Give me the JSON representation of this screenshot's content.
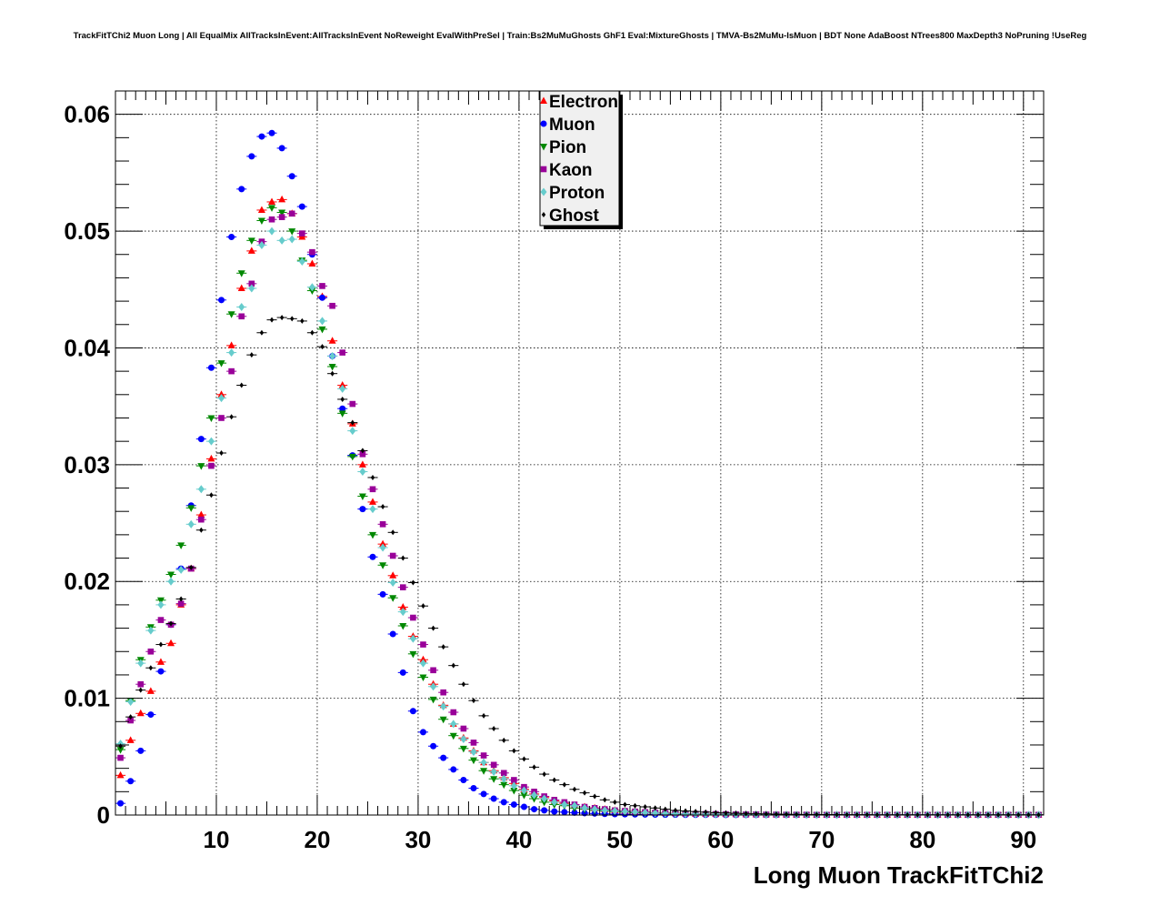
{
  "chart_data": {
    "type": "scatter",
    "title": "TrackFitTChi2 Muon Long | All EqualMix AllTracksInEvent:AllTracksInEvent NoReweight EvalWithPreSel | Train:Bs2MuMuGhosts GhF1 Eval:MixtureGhosts | TMVA-Bs2MuMu-IsMuon | BDT None AdaBoost NTrees800 MaxDepth3 NoPruning !UseReg",
    "xlabel": "Long Muon TrackFitTChi2",
    "ylabel": "",
    "xlim": [
      0,
      92
    ],
    "ylim": [
      0,
      0.062
    ],
    "x_ticks": [
      10,
      20,
      30,
      40,
      50,
      60,
      70,
      80,
      90
    ],
    "y_ticks": [
      0,
      0.01,
      0.02,
      0.03,
      0.04,
      0.05,
      0.06
    ],
    "x_tick_labels": [
      "10",
      "20",
      "30",
      "40",
      "50",
      "60",
      "70",
      "80",
      "90"
    ],
    "y_tick_labels": [
      "0",
      "0.01",
      "0.02",
      "0.03",
      "0.04",
      "0.05",
      "0.06"
    ],
    "grid": true,
    "legend_position": "top-center",
    "x": [
      0.5,
      1.5,
      2.5,
      3.5,
      4.5,
      5.5,
      6.5,
      7.5,
      8.5,
      9.5,
      10.5,
      11.5,
      12.5,
      13.5,
      14.5,
      15.5,
      16.5,
      17.5,
      18.5,
      19.5,
      20.5,
      21.5,
      22.5,
      23.5,
      24.5,
      25.5,
      26.5,
      27.5,
      28.5,
      29.5,
      30.5,
      31.5,
      32.5,
      33.5,
      34.5,
      35.5,
      36.5,
      37.5,
      38.5,
      39.5,
      40.5,
      41.5,
      42.5,
      43.5,
      44.5,
      45.5,
      46.5,
      47.5,
      48.5,
      49.5,
      50.5,
      51.5,
      52.5,
      53.5,
      54.5,
      55.5,
      56.5,
      57.5,
      58.5,
      59.5,
      60.5,
      61.5,
      62.5,
      63.5,
      64.5,
      65.5,
      66.5,
      67.5,
      68.5,
      69.5,
      70.5,
      71.5,
      72.5,
      73.5,
      74.5,
      75.5,
      76.5,
      77.5,
      78.5,
      79.5,
      80.5,
      81.5,
      82.5,
      83.5,
      84.5,
      85.5,
      86.5,
      87.5,
      88.5,
      89.5,
      90.5,
      91.5
    ],
    "series": [
      {
        "name": "Electron",
        "color": "#ff0000",
        "marker": "triangle-up",
        "values": [
          0.0034,
          0.0064,
          0.0087,
          0.0106,
          0.0131,
          0.0147,
          0.018,
          0.0211,
          0.0257,
          0.0305,
          0.036,
          0.0402,
          0.0451,
          0.0483,
          0.0518,
          0.0525,
          0.0527,
          0.0515,
          0.0495,
          0.0472,
          0.0444,
          0.0406,
          0.0368,
          0.0335,
          0.03,
          0.0268,
          0.0232,
          0.0205,
          0.0178,
          0.0153,
          0.0133,
          0.0112,
          0.0094,
          0.0078,
          0.0066,
          0.0055,
          0.0045,
          0.0038,
          0.0032,
          0.0027,
          0.0022,
          0.0018,
          0.0015,
          0.0012,
          0.001,
          0.0008,
          0.0007,
          0.0006,
          0.0005,
          0.0004,
          0.00035,
          0.0003,
          0.00025,
          0.0002,
          0.00018,
          0.00015,
          0.00013,
          0.0001,
          0.0001,
          9e-05,
          8e-05,
          7e-05,
          6e-05,
          5e-05,
          5e-05,
          4e-05,
          4e-05,
          3e-05,
          3e-05,
          3e-05,
          2e-05,
          2e-05,
          2e-05,
          2e-05,
          2e-05,
          1e-05,
          1e-05,
          1e-05,
          1e-05,
          1e-05,
          1e-05,
          1e-05,
          1e-05,
          1e-05,
          1e-05,
          1e-05,
          1e-05,
          1e-05,
          1e-05,
          1e-05,
          1e-05,
          1e-05
        ]
      },
      {
        "name": "Muon",
        "color": "#0000ff",
        "marker": "circle",
        "values": [
          0.001,
          0.0029,
          0.0055,
          0.0086,
          0.0123,
          0.0163,
          0.0211,
          0.0265,
          0.0322,
          0.0383,
          0.0441,
          0.0495,
          0.0536,
          0.0564,
          0.0581,
          0.0584,
          0.0571,
          0.0547,
          0.0521,
          0.048,
          0.0443,
          0.0393,
          0.0348,
          0.0308,
          0.0262,
          0.0221,
          0.0189,
          0.0155,
          0.0122,
          0.0089,
          0.0071,
          0.0059,
          0.0049,
          0.0039,
          0.003,
          0.0023,
          0.0018,
          0.0014,
          0.0011,
          0.0009,
          0.0007,
          0.0005,
          0.0004,
          0.0003,
          0.00025,
          0.0002,
          0.00016,
          0.00013,
          0.0001,
          8e-05,
          7e-05,
          6e-05,
          5e-05,
          4e-05,
          3e-05,
          3e-05,
          2e-05,
          2e-05,
          2e-05,
          2e-05,
          1e-05,
          1e-05,
          1e-05,
          1e-05,
          1e-05,
          1e-05,
          1e-05,
          1e-05,
          1e-05,
          1e-05,
          1e-05,
          1e-05,
          1e-05,
          1e-05,
          1e-05,
          1e-05,
          1e-05,
          1e-05,
          1e-05,
          1e-05,
          1e-05,
          1e-05,
          1e-05,
          1e-05,
          1e-05,
          1e-05,
          1e-05,
          1e-05,
          1e-05,
          1e-05,
          1e-05,
          1e-05
        ]
      },
      {
        "name": "Pion",
        "color": "#008800",
        "marker": "triangle-down",
        "values": [
          0.0056,
          0.0098,
          0.0133,
          0.0161,
          0.0184,
          0.0206,
          0.0231,
          0.0263,
          0.0299,
          0.034,
          0.0387,
          0.0429,
          0.0464,
          0.0492,
          0.0509,
          0.052,
          0.0516,
          0.05,
          0.0475,
          0.0449,
          0.0416,
          0.0384,
          0.0344,
          0.0307,
          0.0273,
          0.024,
          0.0214,
          0.0186,
          0.0162,
          0.0138,
          0.0118,
          0.0099,
          0.0082,
          0.0068,
          0.0057,
          0.0047,
          0.0038,
          0.0031,
          0.0026,
          0.0021,
          0.0017,
          0.0014,
          0.0011,
          0.0009,
          0.0008,
          0.0006,
          0.0005,
          0.0004,
          0.00035,
          0.0003,
          0.00025,
          0.0002,
          0.00018,
          0.00015,
          0.00012,
          0.0001,
          0.0001,
          8e-05,
          7e-05,
          6e-05,
          5e-05,
          5e-05,
          4e-05,
          4e-05,
          3e-05,
          3e-05,
          3e-05,
          2e-05,
          2e-05,
          2e-05,
          2e-05,
          2e-05,
          2e-05,
          2e-05,
          2e-05,
          2e-05,
          2e-05,
          2e-05,
          2e-05,
          2e-05,
          2e-05,
          2e-05,
          2e-05,
          2e-05,
          2e-05,
          2e-05,
          2e-05,
          2e-05,
          2e-05,
          2e-05,
          2e-05,
          2e-05
        ]
      },
      {
        "name": "Kaon",
        "color": "#990099",
        "marker": "square",
        "values": [
          0.0049,
          0.0081,
          0.0112,
          0.014,
          0.0167,
          0.0163,
          0.0181,
          0.0211,
          0.0253,
          0.0299,
          0.034,
          0.038,
          0.0427,
          0.0455,
          0.0491,
          0.051,
          0.0512,
          0.0515,
          0.0498,
          0.0482,
          0.0453,
          0.0436,
          0.0396,
          0.0352,
          0.0309,
          0.0279,
          0.0249,
          0.0222,
          0.0195,
          0.0169,
          0.0146,
          0.0124,
          0.0105,
          0.0088,
          0.0074,
          0.0062,
          0.0051,
          0.0043,
          0.0036,
          0.003,
          0.0024,
          0.002,
          0.0016,
          0.0013,
          0.0011,
          0.0009,
          0.0007,
          0.0006,
          0.0005,
          0.0004,
          0.00035,
          0.0003,
          0.00025,
          0.0002,
          0.00017,
          0.00014,
          0.00012,
          0.0001,
          9e-05,
          8e-05,
          7e-05,
          6e-05,
          5e-05,
          5e-05,
          4e-05,
          4e-05,
          3e-05,
          3e-05,
          3e-05,
          2e-05,
          2e-05,
          2e-05,
          2e-05,
          2e-05,
          2e-05,
          2e-05,
          2e-05,
          2e-05,
          2e-05,
          2e-05,
          2e-05,
          2e-05,
          2e-05,
          2e-05,
          2e-05,
          2e-05,
          2e-05,
          2e-05,
          2e-05,
          2e-05,
          2e-05,
          2e-05
        ]
      },
      {
        "name": "Proton",
        "color": "#66cccc",
        "marker": "diamond",
        "values": [
          0.0061,
          0.0097,
          0.013,
          0.0158,
          0.018,
          0.02,
          0.021,
          0.0249,
          0.0279,
          0.032,
          0.0357,
          0.0396,
          0.0435,
          0.0451,
          0.0488,
          0.05,
          0.0492,
          0.0493,
          0.0474,
          0.0452,
          0.0423,
          0.0393,
          0.0365,
          0.0329,
          0.0294,
          0.0262,
          0.0229,
          0.0199,
          0.0174,
          0.0151,
          0.013,
          0.011,
          0.0093,
          0.0078,
          0.0065,
          0.0054,
          0.0045,
          0.0037,
          0.0031,
          0.0025,
          0.0021,
          0.0017,
          0.0014,
          0.0011,
          0.0009,
          0.0008,
          0.0006,
          0.0005,
          0.0004,
          0.00035,
          0.0003,
          0.00025,
          0.0002,
          0.00017,
          0.00014,
          0.00012,
          0.0001,
          9e-05,
          8e-05,
          7e-05,
          6e-05,
          5e-05,
          4e-05,
          4e-05,
          3e-05,
          3e-05,
          3e-05,
          2e-05,
          2e-05,
          2e-05,
          2e-05,
          2e-05,
          2e-05,
          2e-05,
          2e-05,
          2e-05,
          2e-05,
          2e-05,
          2e-05,
          2e-05,
          2e-05,
          2e-05,
          2e-05,
          2e-05,
          2e-05,
          2e-05,
          2e-05,
          2e-05,
          2e-05,
          2e-05,
          2e-05,
          2e-05
        ]
      },
      {
        "name": "Ghost",
        "color": "#000000",
        "marker": "diamond-small",
        "values": [
          0.0059,
          0.0084,
          0.0107,
          0.0126,
          0.0146,
          0.0164,
          0.0185,
          0.0212,
          0.0244,
          0.0274,
          0.031,
          0.0341,
          0.0368,
          0.0394,
          0.0413,
          0.0424,
          0.0426,
          0.0425,
          0.0423,
          0.0413,
          0.0401,
          0.0378,
          0.0356,
          0.0336,
          0.0312,
          0.0289,
          0.0264,
          0.0242,
          0.022,
          0.0199,
          0.0179,
          0.016,
          0.0144,
          0.0128,
          0.0112,
          0.0098,
          0.0085,
          0.0074,
          0.0064,
          0.0055,
          0.0048,
          0.0041,
          0.0035,
          0.003,
          0.0026,
          0.0022,
          0.0019,
          0.0016,
          0.0013,
          0.0011,
          0.0009,
          0.0008,
          0.0007,
          0.0006,
          0.0005,
          0.0004,
          0.00035,
          0.0003,
          0.00025,
          0.0002,
          0.00018,
          0.00015,
          0.00013,
          0.00011,
          0.0001,
          8e-05,
          7e-05,
          6e-05,
          5e-05,
          5e-05,
          4e-05,
          4e-05,
          3e-05,
          3e-05,
          3e-05,
          2e-05,
          2e-05,
          2e-05,
          2e-05,
          2e-05,
          2e-05,
          2e-05,
          2e-05,
          2e-05,
          2e-05,
          2e-05,
          2e-05,
          2e-05,
          2e-05,
          2e-05,
          2e-05,
          2e-05
        ]
      }
    ]
  }
}
